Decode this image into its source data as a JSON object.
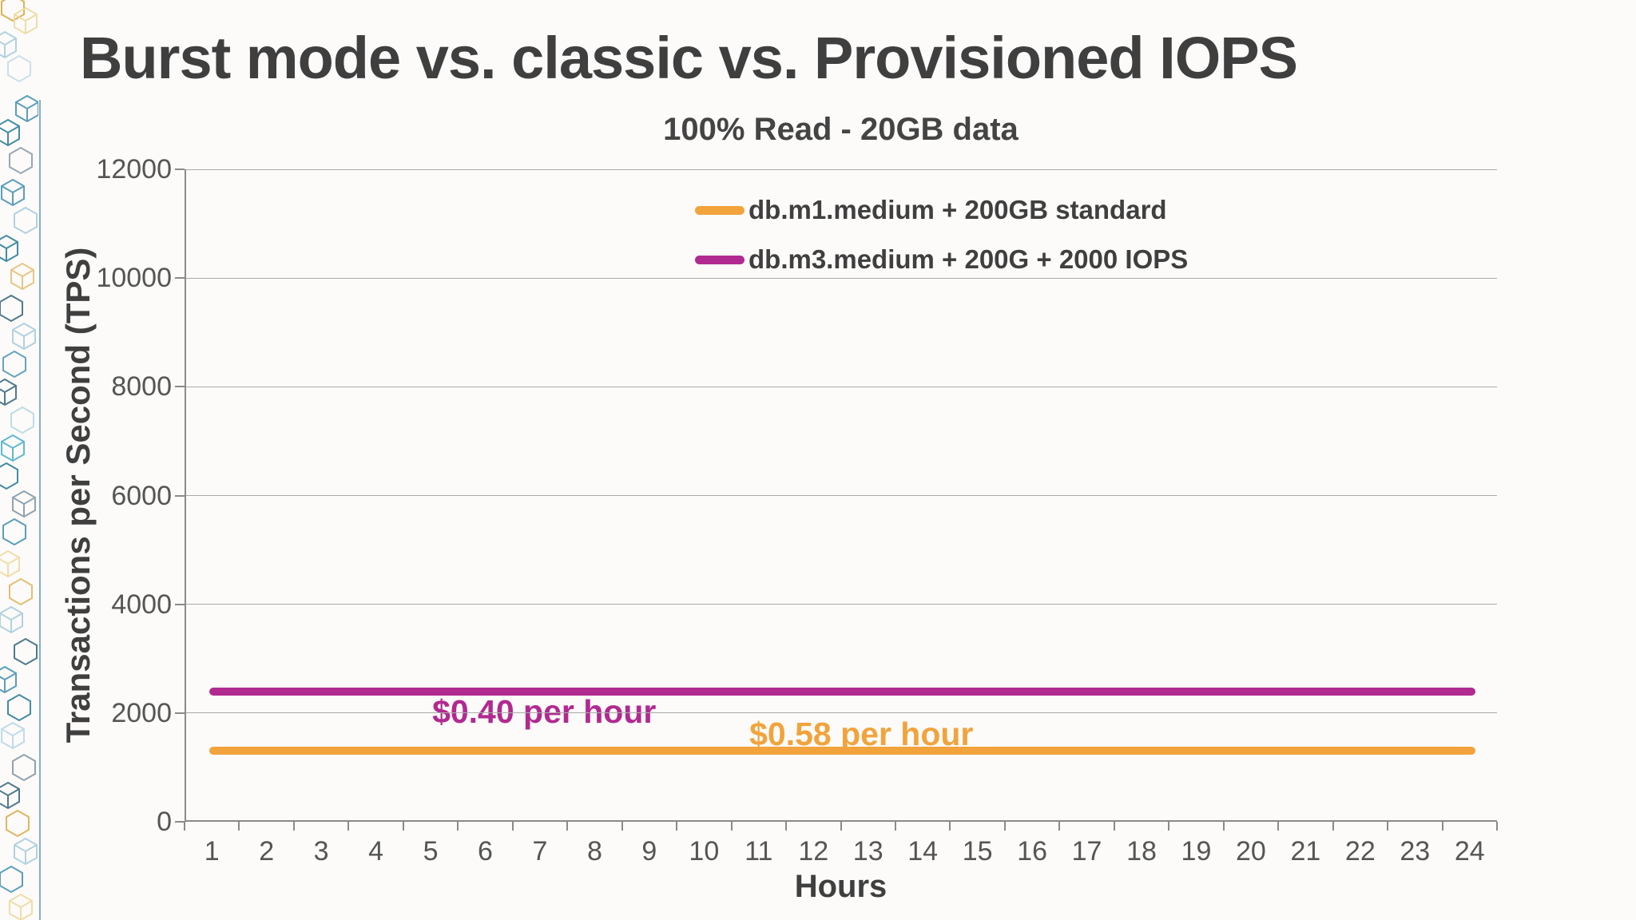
{
  "slide": {
    "title": "Burst mode vs. classic vs. Provisioned IOPS"
  },
  "chart_data": {
    "type": "line",
    "title": "100% Read - 20GB data",
    "xlabel": "Hours",
    "ylabel": "Transactions per Second (TPS)",
    "x": [
      1,
      2,
      3,
      4,
      5,
      6,
      7,
      8,
      9,
      10,
      11,
      12,
      13,
      14,
      15,
      16,
      17,
      18,
      19,
      20,
      21,
      22,
      23,
      24
    ],
    "ylim": [
      0,
      12000
    ],
    "yticks": [
      0,
      2000,
      4000,
      6000,
      8000,
      10000,
      12000
    ],
    "grid": true,
    "legend_position": "top-center-inside",
    "series": [
      {
        "name": "db.m1.medium + 200GB standard",
        "color": "#F2A33C",
        "values": [
          1300,
          1300,
          1300,
          1300,
          1300,
          1300,
          1300,
          1300,
          1300,
          1300,
          1300,
          1300,
          1300,
          1300,
          1300,
          1300,
          1300,
          1300,
          1300,
          1300,
          1300,
          1300,
          1300,
          1300
        ]
      },
      {
        "name": "db.m3.medium + 200G + 2000 IOPS",
        "color": "#B12A90",
        "values": [
          2400,
          2400,
          2400,
          2400,
          2400,
          2400,
          2400,
          2400,
          2400,
          2400,
          2400,
          2400,
          2400,
          2400,
          2400,
          2400,
          2400,
          2400,
          2400,
          2400,
          2400,
          2400,
          2400,
          2400
        ]
      }
    ],
    "annotations": [
      {
        "text": "$0.40 per hour",
        "color": "#B12A90",
        "anchor_hour": 4.5,
        "anchor_tps": 2365
      },
      {
        "text": "$0.58 per hour",
        "color": "#F2A33C",
        "anchor_hour": 10.3,
        "anchor_tps": 1950
      }
    ],
    "axis_colors": {
      "grid": "#aaaaaa",
      "axis": "#8a8a8a",
      "tick_text": "#555555"
    }
  }
}
